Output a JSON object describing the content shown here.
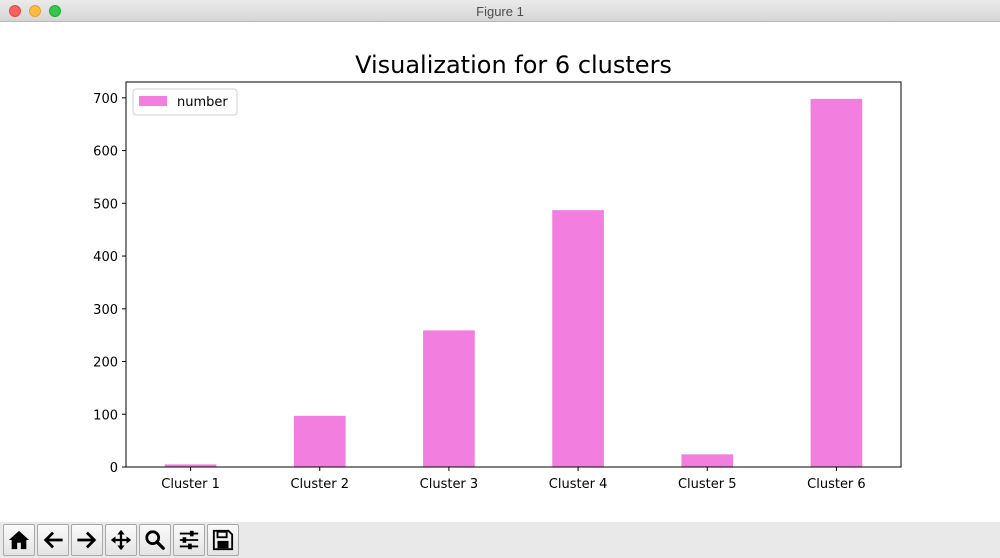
{
  "window": {
    "title": "Figure 1"
  },
  "toolbar": {
    "buttons": [
      {
        "name": "home-button",
        "icon": "home-icon"
      },
      {
        "name": "back-button",
        "icon": "arrow-left-icon"
      },
      {
        "name": "forward-button",
        "icon": "arrow-right-icon"
      },
      {
        "name": "pan-button",
        "icon": "move-icon"
      },
      {
        "name": "zoom-button",
        "icon": "magnifier-icon"
      },
      {
        "name": "configure-subplots-button",
        "icon": "sliders-icon"
      },
      {
        "name": "save-button",
        "icon": "floppy-disk-icon"
      }
    ]
  },
  "chart_data": {
    "type": "bar",
    "title": "Visualization for 6 clusters",
    "xlabel": "",
    "ylabel": "",
    "categories": [
      "Cluster 1",
      "Cluster 2",
      "Cluster 3",
      "Cluster 4",
      "Cluster 5",
      "Cluster 6"
    ],
    "series": [
      {
        "name": "number",
        "values": [
          5,
          97,
          259,
          487,
          24,
          698
        ],
        "color": "#f27fe0"
      }
    ],
    "ylim": [
      0,
      730
    ],
    "yticks": [
      0,
      100,
      200,
      300,
      400,
      500,
      600,
      700
    ],
    "grid": false,
    "legend": "upper-left"
  }
}
